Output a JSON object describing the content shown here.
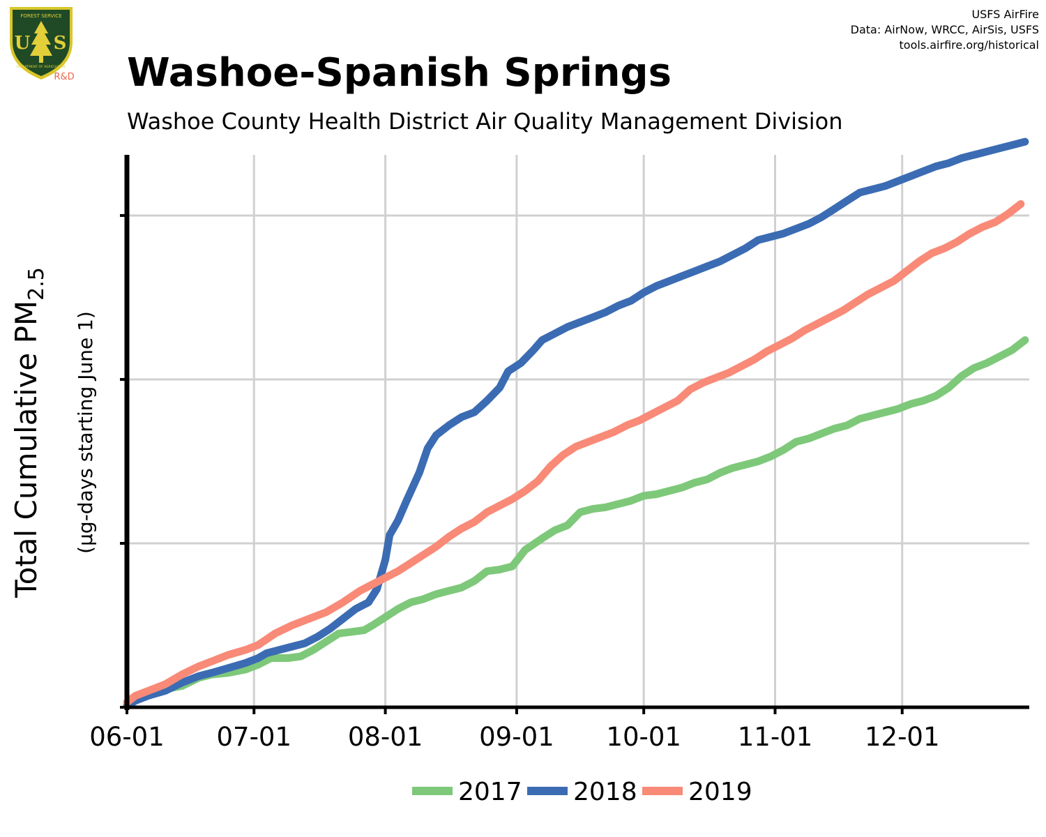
{
  "header": {
    "title": "Washoe-Spanish Springs",
    "subtitle": "Washoe County Health District Air Quality Management Division",
    "credits": [
      "USFS AirFire",
      "Data: AirNow, WRCC, AirSis, USFS",
      "tools.airfire.org/historical"
    ]
  },
  "logo": {
    "top_text": "FOREST SERVICE",
    "letters_left": "U",
    "letters_right": "S",
    "bottom_text": "DEPARTMENT OF AGRICULTURE",
    "rd_label": "R&D",
    "colors": {
      "shield": "#1f4a25",
      "rim": "#d8c62a",
      "tree": "#e2cf3a",
      "rd": "#e8674f"
    }
  },
  "axes": {
    "ylabel_main": "Total Cumulative PM",
    "ylabel_sub": "2.5",
    "ylabel_units": "(µg-days starting June 1)"
  },
  "chart_data": {
    "type": "line",
    "title": "Washoe-Spanish Springs",
    "subtitle": "Washoe County Health District Air Quality Management Division",
    "xlabel": "",
    "ylabel": "Total Cumulative PM2.5 (µg-days starting June 1)",
    "x_ticks": [
      "06-01",
      "07-01",
      "08-01",
      "09-01",
      "10-01",
      "11-01",
      "12-01"
    ],
    "x_tick_days": [
      0,
      30,
      61,
      92,
      122,
      153,
      183
    ],
    "xlim": [
      0,
      213
    ],
    "ylim": [
      0,
      3.37
    ],
    "y_ticks": [
      0,
      1,
      2,
      3
    ],
    "y_tick_labels_shown": false,
    "grid": true,
    "legend_position": "bottom",
    "series": [
      {
        "name": "2017",
        "color": "#7ec87a",
        "points": [
          [
            0,
            0.01
          ],
          [
            2,
            0.05
          ],
          [
            5,
            0.08
          ],
          [
            9,
            0.11
          ],
          [
            13,
            0.13
          ],
          [
            17,
            0.18
          ],
          [
            20,
            0.2
          ],
          [
            24,
            0.21
          ],
          [
            28,
            0.23
          ],
          [
            31,
            0.26
          ],
          [
            34,
            0.3
          ],
          [
            38,
            0.3
          ],
          [
            41,
            0.31
          ],
          [
            44,
            0.35
          ],
          [
            47,
            0.4
          ],
          [
            50,
            0.45
          ],
          [
            53,
            0.46
          ],
          [
            56,
            0.47
          ],
          [
            58,
            0.5
          ],
          [
            61,
            0.55
          ],
          [
            64,
            0.6
          ],
          [
            67,
            0.64
          ],
          [
            70,
            0.66
          ],
          [
            73,
            0.69
          ],
          [
            76,
            0.71
          ],
          [
            79,
            0.73
          ],
          [
            82,
            0.77
          ],
          [
            85,
            0.83
          ],
          [
            88,
            0.84
          ],
          [
            91,
            0.86
          ],
          [
            94,
            0.96
          ],
          [
            98,
            1.03
          ],
          [
            101,
            1.08
          ],
          [
            104,
            1.11
          ],
          [
            107,
            1.19
          ],
          [
            110,
            1.21
          ],
          [
            113,
            1.22
          ],
          [
            116,
            1.24
          ],
          [
            119,
            1.26
          ],
          [
            122,
            1.29
          ],
          [
            125,
            1.3
          ],
          [
            128,
            1.32
          ],
          [
            131,
            1.34
          ],
          [
            134,
            1.37
          ],
          [
            137,
            1.39
          ],
          [
            140,
            1.43
          ],
          [
            143,
            1.46
          ],
          [
            146,
            1.48
          ],
          [
            149,
            1.5
          ],
          [
            152,
            1.53
          ],
          [
            155,
            1.57
          ],
          [
            158,
            1.62
          ],
          [
            161,
            1.64
          ],
          [
            164,
            1.67
          ],
          [
            167,
            1.7
          ],
          [
            170,
            1.72
          ],
          [
            173,
            1.76
          ],
          [
            176,
            1.78
          ],
          [
            179,
            1.8
          ],
          [
            182,
            1.82
          ],
          [
            185,
            1.85
          ],
          [
            188,
            1.87
          ],
          [
            191,
            1.9
          ],
          [
            194,
            1.95
          ],
          [
            197,
            2.02
          ],
          [
            200,
            2.07
          ],
          [
            203,
            2.1
          ],
          [
            206,
            2.14
          ],
          [
            209,
            2.18
          ],
          [
            212,
            2.24
          ]
        ]
      },
      {
        "name": "2018",
        "color": "#3b6cb3",
        "points": [
          [
            0,
            0.01
          ],
          [
            2,
            0.04
          ],
          [
            5,
            0.07
          ],
          [
            9,
            0.1
          ],
          [
            13,
            0.15
          ],
          [
            17,
            0.19
          ],
          [
            20,
            0.21
          ],
          [
            24,
            0.24
          ],
          [
            28,
            0.27
          ],
          [
            31,
            0.3
          ],
          [
            33,
            0.33
          ],
          [
            36,
            0.35
          ],
          [
            39,
            0.37
          ],
          [
            42,
            0.39
          ],
          [
            45,
            0.43
          ],
          [
            48,
            0.48
          ],
          [
            51,
            0.54
          ],
          [
            54,
            0.6
          ],
          [
            57,
            0.64
          ],
          [
            59,
            0.72
          ],
          [
            61,
            0.9
          ],
          [
            62,
            1.05
          ],
          [
            64,
            1.14
          ],
          [
            66,
            1.26
          ],
          [
            69,
            1.43
          ],
          [
            71,
            1.58
          ],
          [
            73,
            1.66
          ],
          [
            76,
            1.72
          ],
          [
            79,
            1.77
          ],
          [
            82,
            1.8
          ],
          [
            85,
            1.87
          ],
          [
            88,
            1.95
          ],
          [
            90,
            2.05
          ],
          [
            93,
            2.1
          ],
          [
            96,
            2.18
          ],
          [
            98,
            2.24
          ],
          [
            101,
            2.28
          ],
          [
            104,
            2.32
          ],
          [
            107,
            2.35
          ],
          [
            110,
            2.38
          ],
          [
            113,
            2.41
          ],
          [
            116,
            2.45
          ],
          [
            119,
            2.48
          ],
          [
            122,
            2.53
          ],
          [
            125,
            2.57
          ],
          [
            128,
            2.6
          ],
          [
            131,
            2.63
          ],
          [
            134,
            2.66
          ],
          [
            137,
            2.69
          ],
          [
            140,
            2.72
          ],
          [
            143,
            2.76
          ],
          [
            146,
            2.8
          ],
          [
            149,
            2.85
          ],
          [
            152,
            2.87
          ],
          [
            155,
            2.89
          ],
          [
            158,
            2.92
          ],
          [
            161,
            2.95
          ],
          [
            164,
            2.99
          ],
          [
            167,
            3.04
          ],
          [
            170,
            3.09
          ],
          [
            173,
            3.14
          ],
          [
            176,
            3.16
          ],
          [
            179,
            3.18
          ],
          [
            182,
            3.21
          ],
          [
            185,
            3.24
          ],
          [
            188,
            3.27
          ],
          [
            191,
            3.3
          ],
          [
            194,
            3.32
          ],
          [
            197,
            3.35
          ],
          [
            200,
            3.37
          ],
          [
            203,
            3.39
          ],
          [
            206,
            3.41
          ],
          [
            209,
            3.43
          ],
          [
            212,
            3.45
          ]
        ]
      },
      {
        "name": "2019",
        "color": "#f88a77",
        "points": [
          [
            0,
            0.03
          ],
          [
            2,
            0.07
          ],
          [
            5,
            0.1
          ],
          [
            9,
            0.14
          ],
          [
            13,
            0.2
          ],
          [
            17,
            0.25
          ],
          [
            20,
            0.28
          ],
          [
            24,
            0.32
          ],
          [
            28,
            0.35
          ],
          [
            31,
            0.38
          ],
          [
            35,
            0.45
          ],
          [
            39,
            0.5
          ],
          [
            43,
            0.54
          ],
          [
            47,
            0.58
          ],
          [
            51,
            0.64
          ],
          [
            55,
            0.71
          ],
          [
            58,
            0.75
          ],
          [
            61,
            0.79
          ],
          [
            64,
            0.83
          ],
          [
            67,
            0.88
          ],
          [
            70,
            0.93
          ],
          [
            73,
            0.98
          ],
          [
            76,
            1.04
          ],
          [
            79,
            1.09
          ],
          [
            82,
            1.13
          ],
          [
            85,
            1.19
          ],
          [
            88,
            1.23
          ],
          [
            91,
            1.27
          ],
          [
            94,
            1.32
          ],
          [
            97,
            1.38
          ],
          [
            100,
            1.47
          ],
          [
            103,
            1.54
          ],
          [
            106,
            1.59
          ],
          [
            109,
            1.62
          ],
          [
            112,
            1.65
          ],
          [
            115,
            1.68
          ],
          [
            118,
            1.72
          ],
          [
            121,
            1.75
          ],
          [
            124,
            1.79
          ],
          [
            127,
            1.83
          ],
          [
            130,
            1.87
          ],
          [
            133,
            1.94
          ],
          [
            136,
            1.98
          ],
          [
            139,
            2.01
          ],
          [
            142,
            2.04
          ],
          [
            145,
            2.08
          ],
          [
            148,
            2.12
          ],
          [
            151,
            2.17
          ],
          [
            154,
            2.21
          ],
          [
            157,
            2.25
          ],
          [
            160,
            2.3
          ],
          [
            163,
            2.34
          ],
          [
            166,
            2.38
          ],
          [
            169,
            2.42
          ],
          [
            172,
            2.47
          ],
          [
            175,
            2.52
          ],
          [
            178,
            2.56
          ],
          [
            181,
            2.6
          ],
          [
            184,
            2.66
          ],
          [
            187,
            2.72
          ],
          [
            190,
            2.77
          ],
          [
            193,
            2.8
          ],
          [
            196,
            2.84
          ],
          [
            199,
            2.89
          ],
          [
            202,
            2.93
          ],
          [
            205,
            2.96
          ],
          [
            208,
            3.01
          ],
          [
            211,
            3.07
          ]
        ]
      }
    ]
  }
}
